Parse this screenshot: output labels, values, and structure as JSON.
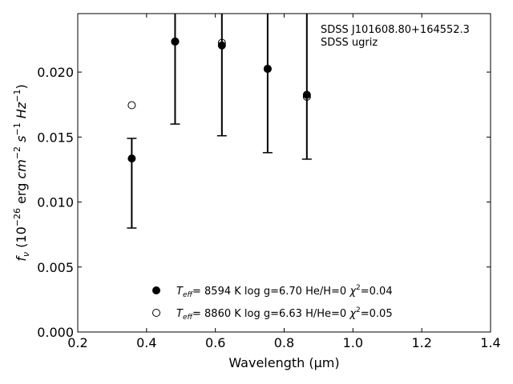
{
  "chart_data": {
    "type": "scatter",
    "xlabel": "Wavelength (μm)",
    "ylabel": "f_ν (10^-26 erg cm^-2 s^-1 Hz^-1)",
    "xlim": [
      0.2,
      1.4
    ],
    "ylim": [
      0.0,
      0.0245
    ],
    "x_ticks": [
      "0.2",
      "0.4",
      "0.6",
      "0.8",
      "1.0",
      "1.2",
      "1.4"
    ],
    "y_ticks": [
      "0.000",
      "0.005",
      "0.010",
      "0.015",
      "0.020"
    ],
    "grid": false,
    "annotation": [
      "SDSS J101608.80+164552.3",
      "SDSS ugriz"
    ],
    "observed": {
      "marker": "filled-circle",
      "points": [
        {
          "x": 0.357,
          "y": 0.01335,
          "err_low": 0.008,
          "err_high": 0.0149
        },
        {
          "x": 0.483,
          "y": 0.02235,
          "err_low": 0.016,
          "err_high": 0.03
        },
        {
          "x": 0.619,
          "y": 0.02205,
          "err_low": 0.0151,
          "err_high": 0.03
        },
        {
          "x": 0.752,
          "y": 0.02025,
          "err_low": 0.0138,
          "err_high": 0.03
        },
        {
          "x": 0.866,
          "y": 0.01825,
          "err_low": 0.0133,
          "err_high": 0.03
        }
      ]
    },
    "series": [
      {
        "marker": "filled-circle",
        "legend": {
          "teff_label": "T",
          "teff_sub": "eff",
          "text": "=  8594 K  log g=6.70  He/H=0",
          "chi_text": "=0.04"
        },
        "values": [
          [
            0.357,
            0.01335
          ],
          [
            0.483,
            0.02235
          ],
          [
            0.619,
            0.02205
          ],
          [
            0.752,
            0.02025
          ],
          [
            0.866,
            0.01825
          ]
        ]
      },
      {
        "marker": "open-circle",
        "legend": {
          "teff_label": "T",
          "teff_sub": "eff",
          "text": "=  8860 K  log g=6.63  H/He=0",
          "chi_text": "=0.05"
        },
        "values": [
          [
            0.357,
            0.01745
          ],
          [
            0.483,
            0.02235
          ],
          [
            0.619,
            0.02225
          ],
          [
            0.752,
            0.02025
          ],
          [
            0.866,
            0.0181
          ]
        ]
      }
    ],
    "legend_position": "lower-center"
  }
}
